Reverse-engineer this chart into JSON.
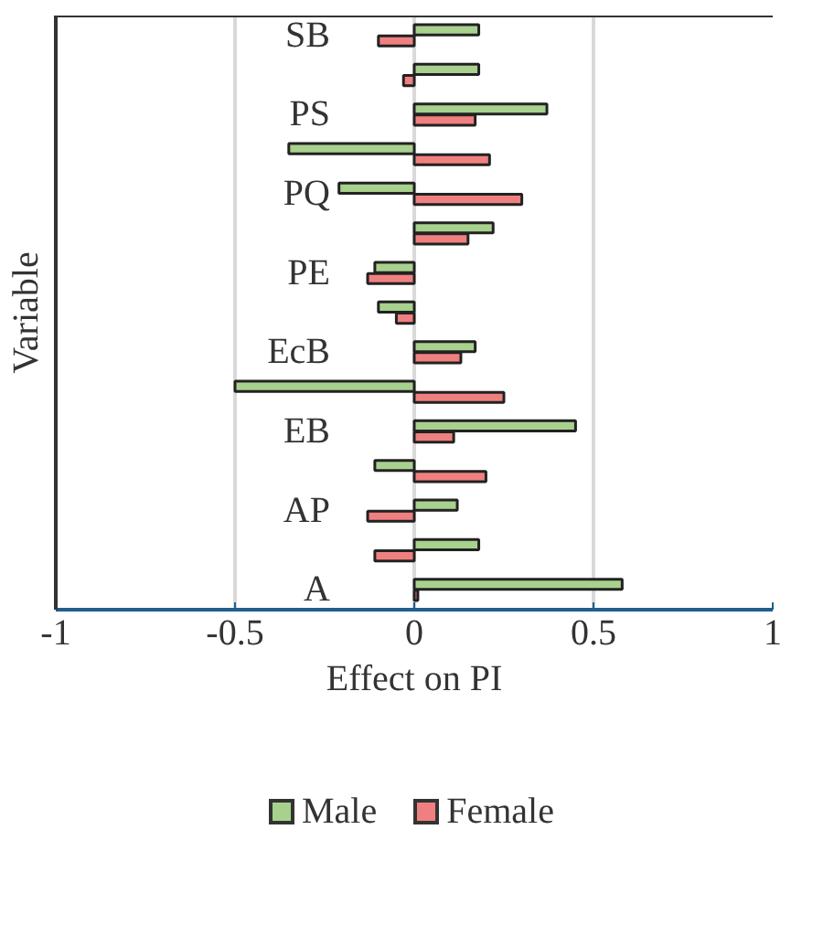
{
  "chart_data": {
    "type": "bar",
    "orientation": "horizontal",
    "xlabel": "Effect on PI",
    "ylabel": "Variable",
    "categories": [
      "SB",
      null,
      "PS",
      null,
      "PQ",
      null,
      "PE",
      null,
      "EcB",
      null,
      "EB",
      null,
      "AP",
      null,
      "A"
    ],
    "series": [
      {
        "name": "Male",
        "color": "#a9d18e",
        "values": [
          0.18,
          0.18,
          0.37,
          -0.35,
          -0.21,
          0.22,
          -0.11,
          -0.1,
          0.17,
          -0.5,
          0.45,
          -0.11,
          0.12,
          0.18,
          0.58
        ]
      },
      {
        "name": "Female",
        "color": "#f08080",
        "values": [
          -0.1,
          -0.03,
          0.17,
          0.21,
          0.3,
          0.15,
          -0.13,
          -0.05,
          0.13,
          0.25,
          0.11,
          0.2,
          -0.13,
          -0.11,
          0.01
        ]
      }
    ],
    "xlim": [
      -1,
      1
    ],
    "xticks": [
      -1,
      -0.5,
      0,
      0.5,
      1
    ],
    "grid": "x",
    "legend": "bottom"
  }
}
